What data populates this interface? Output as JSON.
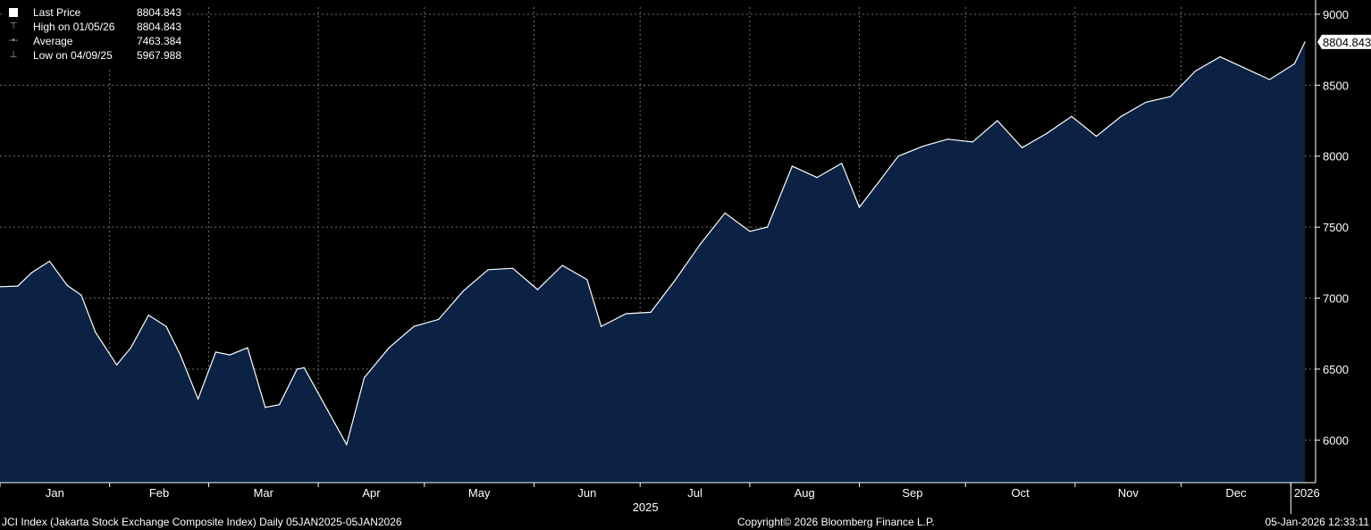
{
  "legend": {
    "last_price": {
      "label": "Last Price",
      "value": "8804.843",
      "marker_icon": "white-square-icon"
    },
    "high": {
      "label": "High on 01/05/26",
      "value": "8804.843",
      "marker_icon": "high-marker-icon"
    },
    "average": {
      "label": "Average",
      "value": "7463.384",
      "marker_icon": "average-marker-icon"
    },
    "low": {
      "label": "Low on 04/09/25",
      "value": "5967.988",
      "marker_icon": "low-marker-icon"
    }
  },
  "footer": {
    "left": "JCI Index (Jakarta Stock Exchange Composite Index) Daily 05JAN2025-05JAN2026",
    "center": "Copyright© 2026 Bloomberg Finance L.P.",
    "right": "05-Jan-2026 12:33:11"
  },
  "colors": {
    "background": "#000000",
    "area_fill": "#0b2244",
    "line": "#ffffff",
    "grid": "#6e6e6e"
  },
  "chart_data": {
    "type": "area",
    "title": "",
    "xlabel": "",
    "ylabel": "",
    "ylim": [
      5700,
      9050
    ],
    "yticks": [
      6000,
      6500,
      7000,
      7500,
      8000,
      8500,
      9000
    ],
    "xticks": [
      "Jan",
      "Feb",
      "Mar",
      "Apr",
      "May",
      "Jun",
      "Jul",
      "Aug",
      "Sep",
      "Oct",
      "Nov",
      "Dec",
      "2026"
    ],
    "year_label": "2025",
    "last_value_label": "8804.843",
    "grid": true,
    "legend_position": "top-left",
    "series": [
      {
        "name": "Last Price",
        "x": [
          "2025-01-01",
          "2025-01-06",
          "2025-01-10",
          "2025-01-15",
          "2025-01-20",
          "2025-01-24",
          "2025-01-28",
          "2025-02-03",
          "2025-02-07",
          "2025-02-12",
          "2025-02-17",
          "2025-02-21",
          "2025-02-26",
          "2025-03-03",
          "2025-03-07",
          "2025-03-12",
          "2025-03-17",
          "2025-03-21",
          "2025-03-26",
          "2025-03-28",
          "2025-04-09",
          "2025-04-14",
          "2025-04-21",
          "2025-04-28",
          "2025-05-05",
          "2025-05-12",
          "2025-05-19",
          "2025-05-26",
          "2025-06-02",
          "2025-06-09",
          "2025-06-16",
          "2025-06-20",
          "2025-06-27",
          "2025-07-04",
          "2025-07-11",
          "2025-07-18",
          "2025-07-25",
          "2025-08-01",
          "2025-08-06",
          "2025-08-13",
          "2025-08-20",
          "2025-08-27",
          "2025-09-01",
          "2025-09-05",
          "2025-09-12",
          "2025-09-19",
          "2025-09-26",
          "2025-10-03",
          "2025-10-10",
          "2025-10-17",
          "2025-10-24",
          "2025-10-31",
          "2025-11-07",
          "2025-11-14",
          "2025-11-21",
          "2025-11-28",
          "2025-12-05",
          "2025-12-12",
          "2025-12-19",
          "2025-12-26",
          "2026-01-02",
          "2026-01-05"
        ],
        "values": [
          7080,
          7085,
          7180,
          7260,
          7090,
          7020,
          6760,
          6530,
          6650,
          6880,
          6800,
          6600,
          6290,
          6620,
          6600,
          6650,
          6230,
          6250,
          6500,
          6510,
          5967.988,
          6440,
          6650,
          6800,
          6850,
          7050,
          7200,
          7210,
          7060,
          7230,
          7130,
          6800,
          6890,
          6900,
          7130,
          7380,
          7600,
          7470,
          7500,
          7930,
          7850,
          7950,
          7640,
          7770,
          8000,
          8070,
          8120,
          8100,
          8250,
          8060,
          8160,
          8280,
          8140,
          8280,
          8380,
          8420,
          8600,
          8700,
          8620,
          8540,
          8650,
          8804.843
        ]
      }
    ]
  }
}
